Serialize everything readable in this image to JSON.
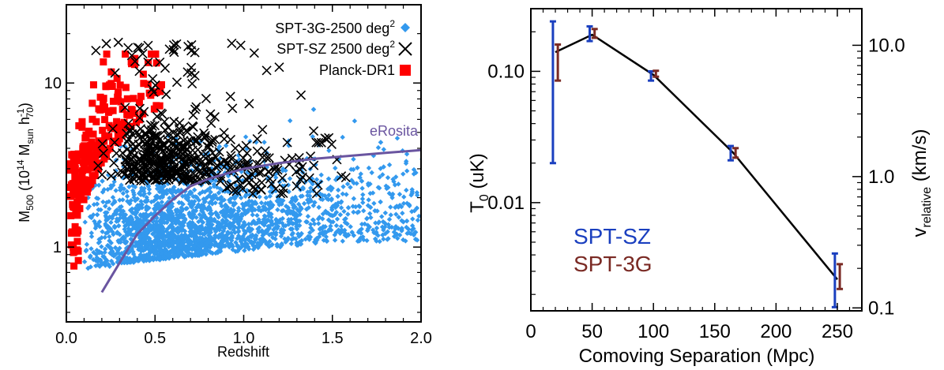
{
  "colors": {
    "spt3g_points": "#3399ee",
    "sptsz_points": "#000000",
    "planck_points": "#ff0000",
    "erosita_line": "#6a55a0",
    "sptsz_text": "#1a3fbf",
    "spt3g_text": "#7a2a24",
    "sptsz_err": "#1a3fbf",
    "spt3g_err": "#7a2a24"
  },
  "chart_data": [
    {
      "type": "scatter",
      "xlabel": "Redshift",
      "ylabel_main": "M",
      "ylabel_sub": "500",
      "ylabel_rest": " (10",
      "ylabel_sup": "14",
      "ylabel_msun": " M",
      "ylabel_msun_sub": "sun",
      "ylabel_h": " h",
      "ylabel_h_sup": "-1",
      "ylabel_h_sub": "70",
      "ylabel_close": ")",
      "xlim": [
        0.0,
        2.0
      ],
      "ylim": [
        0.35,
        30
      ],
      "yscale": "log",
      "x_ticks": [
        "0.0",
        "0.5",
        "1.0",
        "1.5",
        "2.0"
      ],
      "x_tick_values": [
        0.0,
        0.5,
        1.0,
        1.5,
        2.0
      ],
      "y_ticks": [
        "1",
        "10"
      ],
      "y_tick_values": [
        1,
        10
      ],
      "legend_position": "top-right",
      "legend": [
        {
          "label": "SPT-3G-2500 deg",
          "sup": "2",
          "marker": "diamond"
        },
        {
          "label": "SPT-SZ 2500 deg",
          "sup": "2",
          "marker": "x"
        },
        {
          "label": "Planck-DR1",
          "sup": "",
          "marker": "square"
        }
      ],
      "line_label": "eRosita",
      "erosita_curve": {
        "x": [
          0.2,
          0.3,
          0.4,
          0.5,
          0.6,
          0.7,
          0.8,
          0.9,
          1.0,
          1.2,
          1.4,
          1.6,
          1.8,
          2.0
        ],
        "y": [
          0.53,
          0.8,
          1.2,
          1.55,
          1.95,
          2.35,
          2.6,
          2.8,
          3.0,
          3.25,
          3.45,
          3.6,
          3.75,
          3.9
        ]
      },
      "series": [
        {
          "name": "SPT-3G-2500 deg²",
          "description_ranges": {
            "x": [
              0.1,
              2.0
            ],
            "y": [
              0.5,
              6
            ]
          }
        },
        {
          "name": "SPT-SZ 2500 deg²",
          "description_ranges": {
            "x": [
              0.1,
              1.75
            ],
            "y": [
              2.0,
              18
            ]
          }
        },
        {
          "name": "Planck-DR1",
          "description_ranges": {
            "x": [
              0.0,
              0.6
            ],
            "y": [
              0.7,
              15
            ]
          }
        }
      ]
    },
    {
      "type": "line",
      "xlabel": "Comoving Separation (Mpc)",
      "ylabel_left_main": "T",
      "ylabel_left_sub": "0",
      "ylabel_left_rest": " (uK)",
      "ylabel_right_main": "v",
      "ylabel_right_sub": "relative",
      "ylabel_right_rest": " (km/s)",
      "xlim": [
        0,
        270
      ],
      "ylim": [
        0.0015,
        0.3
      ],
      "yscale": "log",
      "right_ylim": [
        0.095,
        19.0
      ],
      "x_ticks": [
        "0",
        "50",
        "100",
        "150",
        "200",
        "250"
      ],
      "x_tick_values": [
        0,
        50,
        100,
        150,
        200,
        250
      ],
      "y_ticks": [
        "0.01",
        "0.10"
      ],
      "y_tick_values": [
        0.01,
        0.1
      ],
      "right_y_ticks": [
        "0.1",
        "1.0",
        "10.0"
      ],
      "right_y_tick_values": [
        0.1,
        1.0,
        10.0
      ],
      "legend_text": [
        "SPT-SZ",
        "SPT-3G"
      ],
      "top_label": "'",
      "model_line": {
        "x": [
          20,
          50,
          100,
          165,
          250
        ],
        "y": [
          0.14,
          0.19,
          0.094,
          0.024,
          0.0026
        ]
      },
      "series": [
        {
          "name": "SPT-SZ",
          "x": [
            18,
            48,
            98,
            163,
            248
          ],
          "y": [
            0.14,
            0.19,
            0.093,
            0.024,
            0.0026
          ],
          "err_low": [
            0.02,
            0.17,
            0.085,
            0.021,
            0.0016
          ],
          "err_high": [
            0.24,
            0.22,
            0.1,
            0.027,
            0.0041
          ]
        },
        {
          "name": "SPT-3G",
          "x": [
            22,
            52,
            102,
            167,
            252
          ],
          "y": [
            0.115,
            0.195,
            0.096,
            0.024,
            0.0027
          ],
          "err_low": [
            0.085,
            0.18,
            0.091,
            0.022,
            0.0022
          ],
          "err_high": [
            0.16,
            0.21,
            0.101,
            0.026,
            0.0034
          ]
        }
      ]
    }
  ]
}
